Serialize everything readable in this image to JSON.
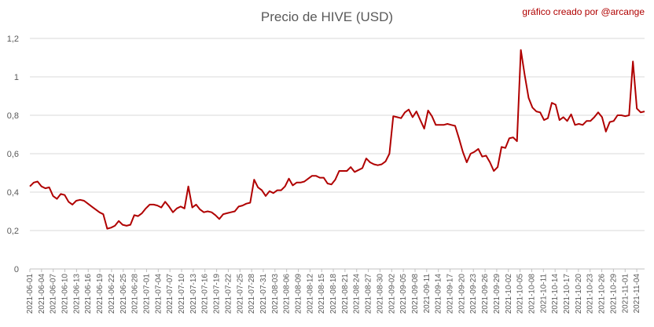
{
  "chart_data": {
    "type": "line",
    "title": "Precio de HIVE (USD)",
    "credit": "gráfico creado por @arcange",
    "xlabel": "",
    "ylabel": "",
    "ylim": [
      0,
      1.2
    ],
    "yticks": [
      0,
      0.2,
      0.4,
      0.6,
      0.8,
      1,
      1.2
    ],
    "ytick_labels": [
      "0",
      "0,2",
      "0,4",
      "0,6",
      "0,8",
      "1",
      "1,2"
    ],
    "grid": true,
    "x_tick_labels": [
      "2021-06-01",
      "2021-06-04",
      "2021-06-07",
      "2021-06-10",
      "2021-06-13",
      "2021-06-16",
      "2021-06-19",
      "2021-06-22",
      "2021-06-25",
      "2021-06-28",
      "2021-07-01",
      "2021-07-04",
      "2021-07-07",
      "2021-07-10",
      "2021-07-13",
      "2021-07-16",
      "2021-07-19",
      "2021-07-22",
      "2021-07-25",
      "2021-07-28",
      "2021-07-31",
      "2021-08-03",
      "2021-08-06",
      "2021-08-09",
      "2021-08-12",
      "2021-08-15",
      "2021-08-18",
      "2021-08-21",
      "2021-08-24",
      "2021-08-27",
      "2021-08-30",
      "2021-09-02",
      "2021-09-05",
      "2021-09-08",
      "2021-09-11",
      "2021-09-14",
      "2021-09-17",
      "2021-09-20",
      "2021-09-23",
      "2021-09-26",
      "2021-09-29",
      "2021-10-02",
      "2021-10-05",
      "2021-10-08",
      "2021-10-11",
      "2021-10-14",
      "2021-10-17",
      "2021-10-20",
      "2021-10-23",
      "2021-10-26",
      "2021-10-29",
      "2021-11-01",
      "2021-11-04"
    ],
    "x_start": "2021-06-01",
    "x_end": "2021-11-06",
    "series": [
      {
        "color": "#b00000",
        "values": [
          0.43,
          0.45,
          0.455,
          0.43,
          0.42,
          0.425,
          0.38,
          0.365,
          0.39,
          0.385,
          0.35,
          0.335,
          0.355,
          0.36,
          0.355,
          0.34,
          0.325,
          0.31,
          0.295,
          0.285,
          0.21,
          0.215,
          0.225,
          0.25,
          0.23,
          0.225,
          0.23,
          0.28,
          0.275,
          0.29,
          0.315,
          0.335,
          0.335,
          0.33,
          0.32,
          0.35,
          0.325,
          0.295,
          0.315,
          0.325,
          0.315,
          0.43,
          0.32,
          0.335,
          0.31,
          0.295,
          0.3,
          0.295,
          0.28,
          0.26,
          0.285,
          0.29,
          0.295,
          0.3,
          0.325,
          0.33,
          0.34,
          0.345,
          0.465,
          0.425,
          0.41,
          0.38,
          0.405,
          0.395,
          0.41,
          0.41,
          0.43,
          0.47,
          0.435,
          0.45,
          0.45,
          0.455,
          0.47,
          0.485,
          0.485,
          0.475,
          0.475,
          0.445,
          0.44,
          0.465,
          0.51,
          0.51,
          0.51,
          0.53,
          0.505,
          0.515,
          0.525,
          0.575,
          0.555,
          0.545,
          0.54,
          0.545,
          0.56,
          0.6,
          0.795,
          0.79,
          0.785,
          0.815,
          0.83,
          0.79,
          0.82,
          0.775,
          0.73,
          0.825,
          0.795,
          0.75,
          0.75,
          0.75,
          0.755,
          0.75,
          0.745,
          0.68,
          0.61,
          0.555,
          0.6,
          0.61,
          0.625,
          0.585,
          0.59,
          0.555,
          0.51,
          0.53,
          0.635,
          0.63,
          0.68,
          0.685,
          0.665,
          1.14,
          1.01,
          0.89,
          0.84,
          0.82,
          0.815,
          0.775,
          0.785,
          0.865,
          0.855,
          0.775,
          0.79,
          0.77,
          0.805,
          0.75,
          0.755,
          0.75,
          0.77,
          0.77,
          0.79,
          0.815,
          0.79,
          0.715,
          0.765,
          0.77,
          0.8,
          0.8,
          0.795,
          0.8,
          1.08,
          0.835,
          0.815,
          0.82
        ]
      }
    ]
  }
}
